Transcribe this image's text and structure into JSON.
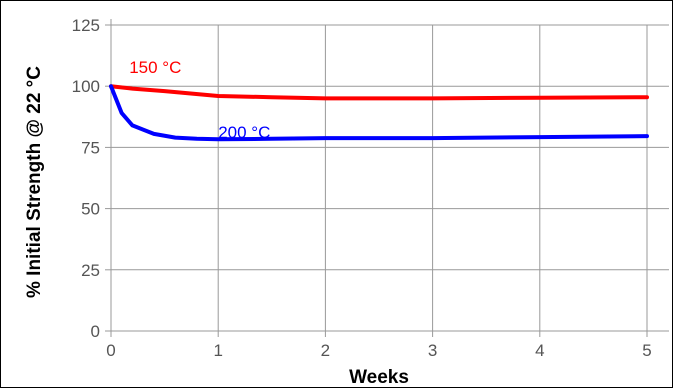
{
  "chart_data": {
    "type": "line",
    "xlabel": "Weeks",
    "ylabel": "% Initial Strength @ 22 °C",
    "xlim": [
      0,
      5
    ],
    "ylim": [
      0,
      125
    ],
    "x_ticks": [
      0,
      1,
      2,
      3,
      4,
      5
    ],
    "y_ticks": [
      0,
      25,
      50,
      75,
      100,
      125
    ],
    "grid": true,
    "series": [
      {
        "name": "150 °C",
        "color": "#ff0000",
        "x": [
          0,
          0.2,
          0.5,
          1,
          1.5,
          2,
          3,
          4,
          5
        ],
        "y": [
          100,
          99,
          98,
          96,
          95.5,
          95,
          95,
          95.3,
          95.5
        ]
      },
      {
        "name": "200 °C",
        "color": "#0000ff",
        "x": [
          0,
          0.1,
          0.2,
          0.4,
          0.6,
          0.8,
          1,
          1.5,
          2,
          3,
          4,
          5
        ],
        "y": [
          100,
          89,
          84,
          80.5,
          79,
          78.5,
          78.3,
          78.5,
          78.8,
          78.8,
          79.2,
          79.6
        ]
      }
    ]
  }
}
